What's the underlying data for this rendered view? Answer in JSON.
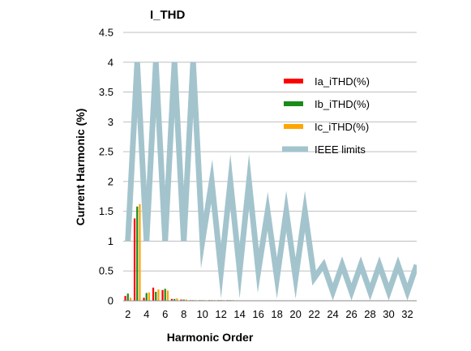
{
  "chart_data": {
    "type": "bar+line",
    "title": "I_THD",
    "xlabel": "Harmonic Order",
    "ylabel": "Current Harmonic (%)",
    "xlim": [
      1.5,
      33
    ],
    "ylim": [
      0,
      4.5
    ],
    "yticks": [
      0,
      0.5,
      1,
      1.5,
      2,
      2.5,
      3,
      3.5,
      4,
      4.5
    ],
    "xticks": [
      2,
      4,
      6,
      8,
      10,
      12,
      14,
      16,
      18,
      20,
      22,
      24,
      26,
      28,
      30,
      32
    ],
    "grid": "horizontal",
    "legend_position": "right",
    "series": [
      {
        "name": "Ia_iTHD(%)",
        "kind": "bar",
        "color": "#ff0000",
        "x": [
          2,
          3,
          4,
          5,
          6,
          7,
          8,
          9,
          10,
          11,
          12,
          13
        ],
        "values": [
          0.08,
          1.38,
          0.05,
          0.22,
          0.18,
          0.03,
          0.02,
          0.01,
          0.01,
          0.01,
          0.01,
          0.01
        ]
      },
      {
        "name": "Ib_iTHD(%)",
        "kind": "bar",
        "color": "#1a8a1a",
        "x": [
          2,
          3,
          4,
          5,
          6,
          7,
          8,
          9,
          10,
          11,
          12,
          13
        ],
        "values": [
          0.12,
          1.58,
          0.13,
          0.15,
          0.2,
          0.03,
          0.02,
          0.01,
          0.01,
          0.01,
          0.01,
          0.01
        ]
      },
      {
        "name": "Ic_iTHD(%)",
        "kind": "bar",
        "color": "#ffa500",
        "x": [
          2,
          3,
          4,
          5,
          6,
          7,
          8,
          9,
          10,
          11,
          12,
          13
        ],
        "values": [
          0.05,
          1.62,
          0.14,
          0.19,
          0.17,
          0.04,
          0.02,
          0.01,
          0.01,
          0.01,
          0.01,
          0.01
        ]
      },
      {
        "name": "IEEE limits",
        "kind": "line",
        "color": "#a3c4cd",
        "x": [
          2,
          3,
          4,
          5,
          6,
          7,
          8,
          9,
          10,
          11,
          12,
          13,
          14,
          15,
          16,
          17,
          18,
          19,
          20,
          21,
          22,
          23,
          24,
          25,
          26,
          27,
          28,
          29,
          30,
          31,
          32,
          33
        ],
        "values": [
          1,
          4,
          1,
          4,
          1,
          4,
          1,
          4,
          1,
          2,
          0.5,
          2,
          0.5,
          2,
          0.5,
          1.5,
          0.38,
          1.5,
          0.38,
          1.5,
          0.38,
          0.6,
          0.15,
          0.6,
          0.15,
          0.6,
          0.15,
          0.6,
          0.15,
          0.6,
          0.15,
          0.6
        ]
      }
    ]
  }
}
